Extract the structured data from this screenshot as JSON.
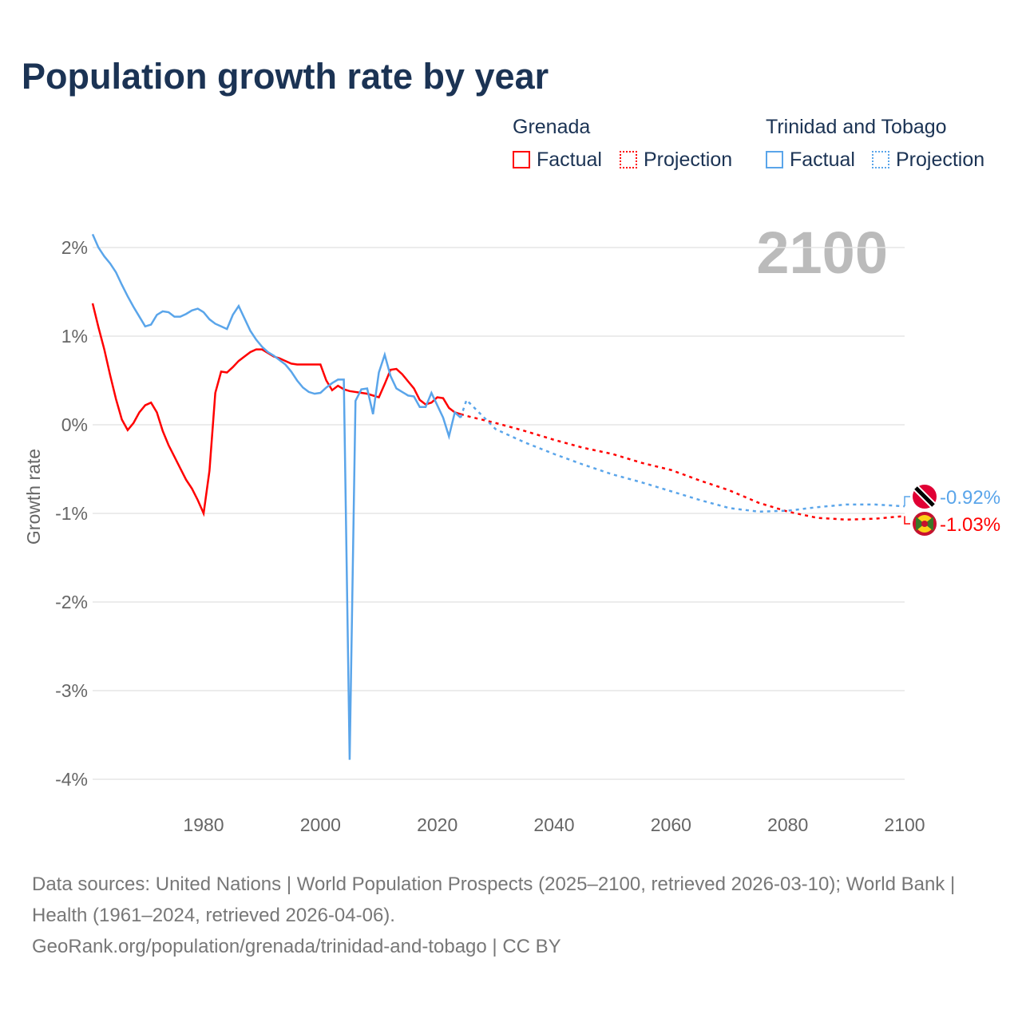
{
  "title": "Population growth rate by year",
  "legend": {
    "groups": [
      {
        "name": "Grenada",
        "factual": "Factual",
        "projection": "Projection",
        "color": "#ff0000"
      },
      {
        "name": "Trinidad and Tobago",
        "factual": "Factual",
        "projection": "Projection",
        "color": "#5aa5ea"
      }
    ]
  },
  "year_display": "2100",
  "footer": {
    "line1": "Data sources: United Nations | World Population Prospects (2025–2100, retrieved 2026-03-10); World Bank | Health (1961–2024, retrieved 2026-04-06).",
    "line2": "GeoRank.org/population/grenada/trinidad-and-tobago | CC BY"
  },
  "chart_data": {
    "type": "line",
    "ylabel": "Growth rate",
    "xlim": [
      1961,
      2100
    ],
    "ylim": [
      -4,
      2.2
    ],
    "yticks": [
      {
        "v": 2,
        "label": "2%"
      },
      {
        "v": 1,
        "label": "1%"
      },
      {
        "v": 0,
        "label": "0%"
      },
      {
        "v": -1,
        "label": "-1%"
      },
      {
        "v": -2,
        "label": "-2%"
      },
      {
        "v": -3,
        "label": "-3%"
      },
      {
        "v": -4,
        "label": "-4%"
      }
    ],
    "xticks": [
      {
        "v": 1980,
        "label": "1980"
      },
      {
        "v": 2000,
        "label": "2000"
      },
      {
        "v": 2020,
        "label": "2020"
      },
      {
        "v": 2040,
        "label": "2040"
      },
      {
        "v": 2060,
        "label": "2060"
      },
      {
        "v": 2080,
        "label": "2080"
      },
      {
        "v": 2100,
        "label": "2100"
      }
    ],
    "series": [
      {
        "name": "Grenada",
        "color": "#ff0000",
        "end_label": "-1.03%",
        "factual_start": 1961,
        "factual": [
          1.37,
          1.1,
          0.85,
          0.56,
          0.29,
          0.06,
          -0.06,
          0.02,
          0.14,
          0.22,
          0.25,
          0.14,
          -0.07,
          -0.23,
          -0.36,
          -0.49,
          -0.62,
          -0.72,
          -0.85,
          -1.0,
          -0.52,
          0.36,
          0.6,
          0.59,
          0.65,
          0.72,
          0.77,
          0.82,
          0.85,
          0.85,
          0.81,
          0.77,
          0.75,
          0.72,
          0.69,
          0.68,
          0.68,
          0.68,
          0.68,
          0.68,
          0.5,
          0.39,
          0.44,
          0.4,
          0.38,
          0.37,
          0.36,
          0.35,
          0.33,
          0.31,
          0.46,
          0.62,
          0.63,
          0.57,
          0.49,
          0.41,
          0.28,
          0.23,
          0.25,
          0.31,
          0.3,
          0.19,
          0.14,
          0.12
        ],
        "projection_years": [
          2024,
          2025,
          2030,
          2035,
          2040,
          2045,
          2050,
          2055,
          2060,
          2065,
          2070,
          2075,
          2080,
          2085,
          2090,
          2095,
          2100
        ],
        "projection": [
          0.12,
          0.1,
          0.02,
          -0.07,
          -0.17,
          -0.26,
          -0.33,
          -0.43,
          -0.51,
          -0.63,
          -0.74,
          -0.88,
          -0.98,
          -1.05,
          -1.07,
          -1.06,
          -1.03
        ]
      },
      {
        "name": "Trinidad and Tobago",
        "color": "#5aa5ea",
        "end_label": "-0.92%",
        "factual_start": 1961,
        "factual": [
          2.15,
          2.0,
          1.9,
          1.82,
          1.72,
          1.58,
          1.45,
          1.33,
          1.22,
          1.11,
          1.13,
          1.24,
          1.28,
          1.27,
          1.22,
          1.22,
          1.25,
          1.29,
          1.31,
          1.27,
          1.19,
          1.14,
          1.11,
          1.08,
          1.24,
          1.34,
          1.2,
          1.06,
          0.96,
          0.88,
          0.82,
          0.78,
          0.73,
          0.68,
          0.6,
          0.5,
          0.42,
          0.37,
          0.35,
          0.36,
          0.42,
          0.47,
          0.51,
          0.51,
          -3.78,
          0.27,
          0.4,
          0.41,
          0.12,
          0.59,
          0.79,
          0.55,
          0.41,
          0.37,
          0.33,
          0.32,
          0.2,
          0.2,
          0.36,
          0.22,
          0.08,
          -0.13,
          0.14,
          0.08
        ],
        "projection_years": [
          2024,
          2025,
          2030,
          2035,
          2040,
          2045,
          2050,
          2055,
          2060,
          2065,
          2070,
          2075,
          2080,
          2085,
          2090,
          2095,
          2100
        ],
        "projection": [
          0.08,
          0.28,
          -0.05,
          -0.2,
          -0.33,
          -0.45,
          -0.56,
          -0.65,
          -0.75,
          -0.85,
          -0.94,
          -0.98,
          -0.97,
          -0.93,
          -0.9,
          -0.9,
          -0.92
        ]
      }
    ]
  }
}
